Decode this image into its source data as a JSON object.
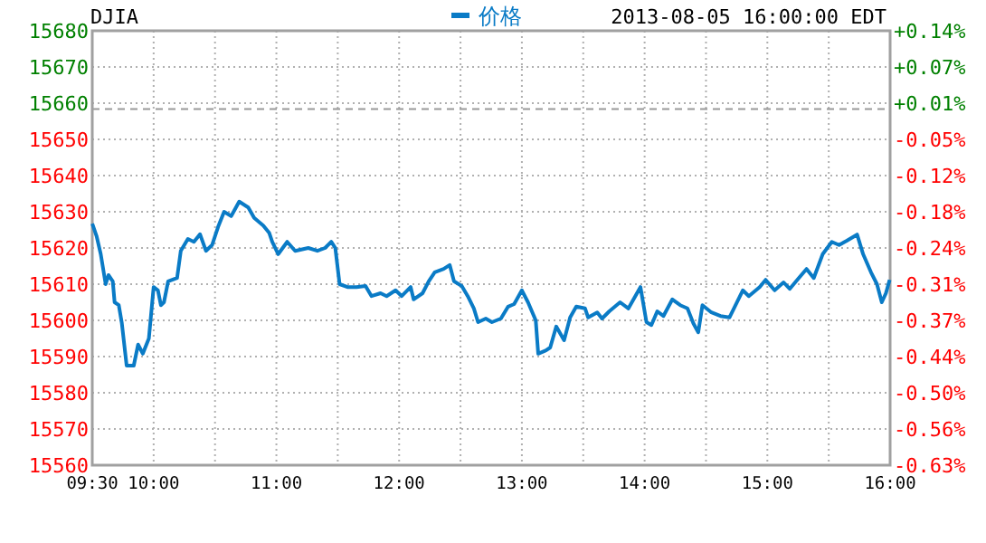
{
  "chart_data": {
    "type": "line",
    "title": "DJIA",
    "subtitle": "2013-08-05 16:00:00 EDT",
    "legend": "top",
    "grid": true,
    "xlim": [
      9.5,
      16
    ],
    "xticks": [
      {
        "value": 9.5,
        "label": "09:30"
      },
      {
        "value": 10,
        "label": "10:00"
      },
      {
        "value": 10.5,
        "label": null
      },
      {
        "value": 11,
        "label": "11:00"
      },
      {
        "value": 11.5,
        "label": null
      },
      {
        "value": 12,
        "label": "12:00"
      },
      {
        "value": 12.5,
        "label": null
      },
      {
        "value": 13,
        "label": "13:00"
      },
      {
        "value": 13.5,
        "label": null
      },
      {
        "value": 14,
        "label": "14:00"
      },
      {
        "value": 14.5,
        "label": null
      },
      {
        "value": 15,
        "label": "15:00"
      },
      {
        "value": 15.5,
        "label": null
      },
      {
        "value": 16,
        "label": "16:00"
      }
    ],
    "ylim": [
      15560,
      15680
    ],
    "yticks": [
      15560,
      15570,
      15580,
      15590,
      15600,
      15610,
      15620,
      15630,
      15640,
      15650,
      15660,
      15670,
      15680
    ],
    "y2lim": [
      -0.628,
      0.138
    ],
    "y2ticks": [
      {
        "value": 0.138,
        "label": "+0.14%"
      },
      {
        "value": 0.074,
        "label": "+0.07%"
      },
      {
        "value": 0.01,
        "label": "+0.01%"
      },
      {
        "value": -0.054,
        "label": "-0.05%"
      },
      {
        "value": -0.118,
        "label": "-0.12%"
      },
      {
        "value": -0.181,
        "label": "-0.18%"
      },
      {
        "value": -0.245,
        "label": "-0.24%"
      },
      {
        "value": -0.309,
        "label": "-0.31%"
      },
      {
        "value": -0.373,
        "label": "-0.37%"
      },
      {
        "value": -0.437,
        "label": "-0.44%"
      },
      {
        "value": -0.501,
        "label": "-0.50%"
      },
      {
        "value": -0.564,
        "label": "-0.56%"
      },
      {
        "value": -0.628,
        "label": "-0.63%"
      }
    ],
    "ref_lines": [
      {
        "axis": "y",
        "value": 15658.4,
        "color": "#999999",
        "line_style": "dashed"
      }
    ],
    "x": [
      9.5,
      9.535,
      9.569,
      9.609,
      9.632,
      9.667,
      9.682,
      9.716,
      9.741,
      9.78,
      9.838,
      9.873,
      9.912,
      9.961,
      10.0,
      10.035,
      10.059,
      10.084,
      10.118,
      10.191,
      10.221,
      10.279,
      10.328,
      10.378,
      10.426,
      10.476,
      10.525,
      10.574,
      10.632,
      10.697,
      10.771,
      10.819,
      10.893,
      10.941,
      10.966,
      11.015,
      11.088,
      11.153,
      11.26,
      11.334,
      11.397,
      11.447,
      11.48,
      11.515,
      11.579,
      11.653,
      11.726,
      11.775,
      11.849,
      11.898,
      11.971,
      12.021,
      12.094,
      12.118,
      12.191,
      12.241,
      12.29,
      12.363,
      12.412,
      12.447,
      12.51,
      12.559,
      12.609,
      12.643,
      12.706,
      12.756,
      12.829,
      12.888,
      12.937,
      13.0,
      13.05,
      13.113,
      13.133,
      13.197,
      13.231,
      13.28,
      13.344,
      13.393,
      13.443,
      13.515,
      13.54,
      13.614,
      13.653,
      13.712,
      13.8,
      13.868,
      13.966,
      14.015,
      14.055,
      14.103,
      14.153,
      14.226,
      14.29,
      14.349,
      14.397,
      14.437,
      14.471,
      14.544,
      14.618,
      14.691,
      14.741,
      14.8,
      14.849,
      14.937,
      14.986,
      15.059,
      15.132,
      15.182,
      15.256,
      15.319,
      15.378,
      15.451,
      15.525,
      15.584,
      15.647,
      15.731,
      15.78,
      15.844,
      15.893,
      15.932,
      15.966,
      15.996
    ],
    "series": [
      {
        "name": "价格",
        "color": "#0a7bc6",
        "values": [
          15626.7,
          15623.3,
          15618.3,
          15610,
          15612.5,
          15610.8,
          15605,
          15604.2,
          15599.2,
          15587.5,
          15587.5,
          15593.3,
          15590.8,
          15595,
          15609.2,
          15608.3,
          15604.2,
          15605,
          15610.8,
          15611.7,
          15619.2,
          15622.5,
          15621.7,
          15623.8,
          15619.2,
          15620.8,
          15625.8,
          15630,
          15628.8,
          15632.8,
          15631.2,
          15628.3,
          15626.2,
          15624.2,
          15621.7,
          15618.3,
          15621.7,
          15619.2,
          15620,
          15619.2,
          15620,
          15621.7,
          15620,
          15610,
          15609.2,
          15609.2,
          15609.5,
          15606.7,
          15607.5,
          15606.7,
          15608.3,
          15606.7,
          15609.2,
          15605.8,
          15607.5,
          15610.8,
          15613.3,
          15614.2,
          15615.3,
          15610.8,
          15609.5,
          15606.7,
          15603.3,
          15599.5,
          15600.5,
          15599.5,
          15600.5,
          15603.8,
          15604.5,
          15608.3,
          15605,
          15600,
          15590.8,
          15591.7,
          15592.5,
          15598.3,
          15594.5,
          15600.8,
          15603.8,
          15603.3,
          15600.8,
          15602.2,
          15600.5,
          15602.5,
          15605,
          15603.3,
          15609.2,
          15599.5,
          15598.7,
          15602.5,
          15601.2,
          15605.8,
          15604.2,
          15603.3,
          15599.2,
          15596.7,
          15604.2,
          15602.2,
          15601.2,
          15600.8,
          15604.2,
          15608.3,
          15606.7,
          15609.2,
          15611.2,
          15608.3,
          15610.5,
          15608.7,
          15611.7,
          15614.2,
          15611.7,
          15618.3,
          15621.7,
          15620.8,
          15622,
          15623.7,
          15618.3,
          15613.3,
          15610,
          15605,
          15607.5,
          15611.2
        ]
      }
    ]
  }
}
